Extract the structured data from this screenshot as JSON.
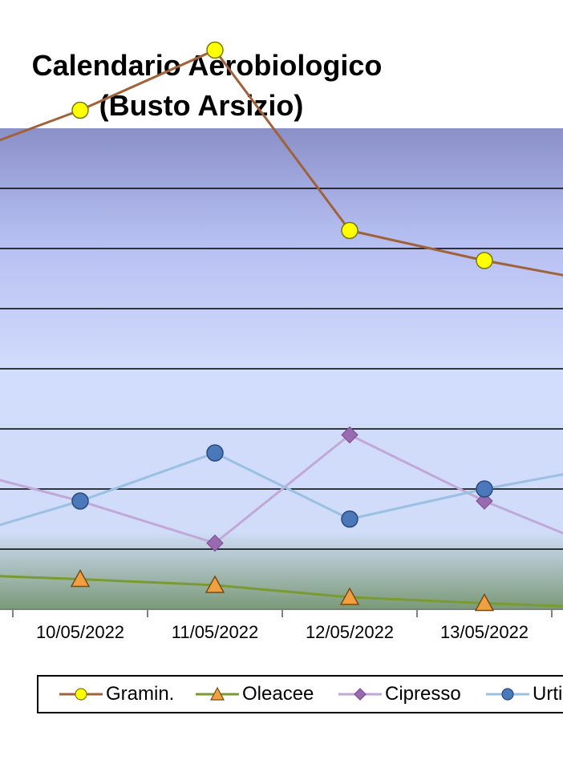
{
  "chart_data": {
    "type": "line",
    "title_line1": "Calendario Aerobiologico",
    "title_line2": "(Busto Arsizio)",
    "categories": [
      "10/05/2022",
      "11/05/2022",
      "12/05/2022",
      "13/05/2022"
    ],
    "series": [
      {
        "name": "Gramin.",
        "color": "#a0623a",
        "marker": "circle",
        "markerFill": "#ffff00",
        "markerStroke": "#7a7a00",
        "values": [
          83,
          93,
          63,
          58
        ]
      },
      {
        "name": "Oleacee",
        "color": "#7a9a32",
        "marker": "triangle",
        "markerFill": "#f0a040",
        "markerStroke": "#7a4a10",
        "values": [
          5,
          4,
          2,
          1
        ]
      },
      {
        "name": "Cipresso",
        "color": "#c0a8d8",
        "marker": "diamond",
        "markerFill": "#9a6ab0",
        "markerStroke": "#7a4a90",
        "values": [
          18,
          11,
          29,
          18
        ]
      },
      {
        "name": "Urti",
        "color": "#9ac0e4",
        "marker": "circle",
        "markerFill": "#4a78b8",
        "markerStroke": "#2a4a80",
        "values": [
          18,
          26,
          15,
          20
        ]
      }
    ],
    "ylim": [
      0,
      80
    ],
    "grid": true,
    "legend_position": "bottom"
  }
}
